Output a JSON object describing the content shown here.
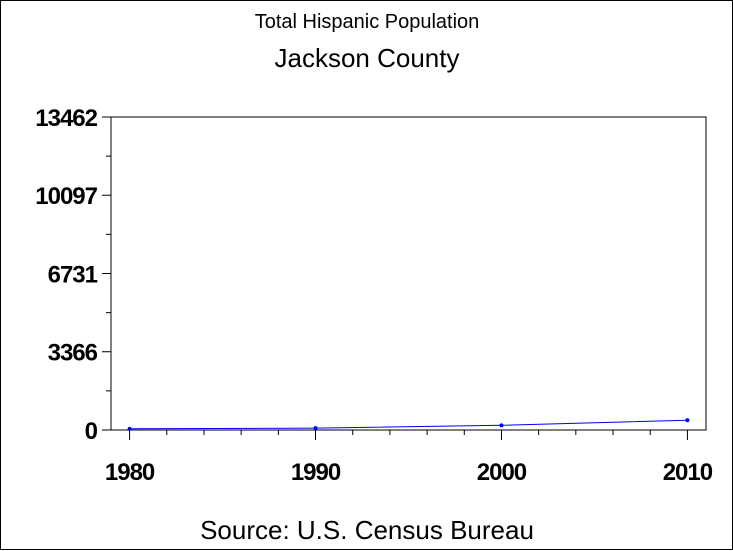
{
  "chart_data": {
    "type": "line",
    "title": "Total Hispanic Population",
    "subtitle": "Jackson County",
    "source": "Source: U.S. Census Bureau",
    "xlabel": "",
    "ylabel": "",
    "x": [
      1980,
      1990,
      2000,
      2010
    ],
    "xlim": [
      1979,
      2011
    ],
    "x_ticks": [
      "1980",
      "1990",
      "2000",
      "2010"
    ],
    "ylim": [
      0,
      13462
    ],
    "y_ticks": [
      "0",
      "3366",
      "6731",
      "10097",
      "13462"
    ],
    "series": [
      {
        "values": [
          50,
          80,
          200,
          420
        ],
        "color": "#0000ff"
      }
    ],
    "grid": false,
    "legend": "none"
  }
}
